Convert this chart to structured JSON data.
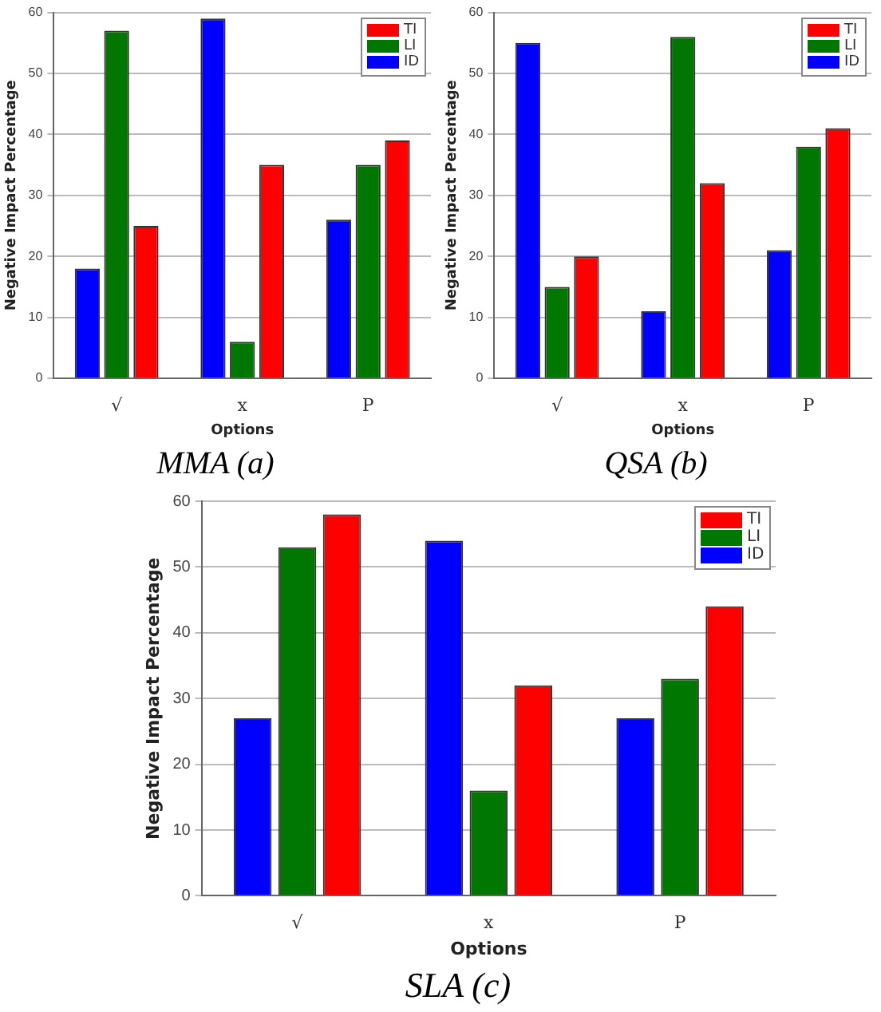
{
  "chart_data": [
    {
      "type": "bar",
      "title": "MMA (a)",
      "xlabel": "Options",
      "ylabel": "Negative Impact Percentage",
      "categories": [
        "√",
        "x",
        "P"
      ],
      "ylim": [
        0,
        60
      ],
      "yticks": [
        0,
        10,
        20,
        30,
        40,
        50,
        60
      ],
      "grid": "y",
      "legend": "top right",
      "series": [
        {
          "name": "ID",
          "color": "#0000ff",
          "values": [
            18,
            59,
            26
          ]
        },
        {
          "name": "LI",
          "color": "#007700",
          "values": [
            57,
            6,
            35
          ]
        },
        {
          "name": "TI",
          "color": "#ff0000",
          "values": [
            25,
            35,
            39
          ]
        }
      ]
    },
    {
      "type": "bar",
      "title": "QSA (b)",
      "xlabel": "Options",
      "ylabel": "Negative Impact Percentage",
      "categories": [
        "√",
        "x",
        "P"
      ],
      "ylim": [
        0,
        60
      ],
      "yticks": [
        0,
        10,
        20,
        30,
        40,
        50,
        60
      ],
      "grid": "y",
      "legend": "top right",
      "series": [
        {
          "name": "ID",
          "color": "#0000ff",
          "values": [
            55,
            11,
            21
          ]
        },
        {
          "name": "LI",
          "color": "#007700",
          "values": [
            15,
            56,
            38
          ]
        },
        {
          "name": "TI",
          "color": "#ff0000",
          "values": [
            20,
            32,
            41
          ]
        }
      ]
    },
    {
      "type": "bar",
      "title": "SLA (c)",
      "xlabel": "Options",
      "ylabel": "Negative Impact Percentage",
      "categories": [
        "√",
        "x",
        "P"
      ],
      "ylim": [
        0,
        60
      ],
      "yticks": [
        0,
        10,
        20,
        30,
        40,
        50,
        60
      ],
      "grid": "y",
      "legend": "top right",
      "series": [
        {
          "name": "ID",
          "color": "#0000ff",
          "values": [
            27,
            54,
            27
          ]
        },
        {
          "name": "LI",
          "color": "#007700",
          "values": [
            53,
            16,
            33
          ]
        },
        {
          "name": "TI",
          "color": "#ff0000",
          "values": [
            58,
            32,
            44
          ]
        }
      ]
    }
  ]
}
